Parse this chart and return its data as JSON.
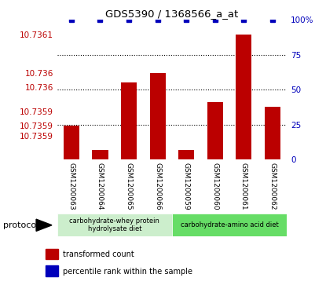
{
  "title": "GDS5390 / 1368566_a_at",
  "samples": [
    "GSM1200063",
    "GSM1200064",
    "GSM1200065",
    "GSM1200066",
    "GSM1200059",
    "GSM1200060",
    "GSM1200061",
    "GSM1200062"
  ],
  "transformed_counts": [
    10.73592,
    10.73587,
    10.73601,
    10.73603,
    10.73587,
    10.73597,
    10.73611,
    10.73596
  ],
  "percentile_ranks": [
    100,
    100,
    100,
    100,
    100,
    100,
    100,
    100
  ],
  "ylim_left": [
    10.73585,
    10.73614
  ],
  "ylim_right": [
    0,
    100
  ],
  "left_tick_vals": [
    10.7359,
    10.73592,
    10.73595,
    10.736,
    10.73603,
    10.73611
  ],
  "left_tick_labels": [
    "10.7359",
    "10.7359",
    "10.7359",
    "10.736",
    "10.736",
    "10.7361"
  ],
  "right_tick_vals": [
    0,
    25,
    50,
    75,
    100
  ],
  "right_tick_labels": [
    "0",
    "25",
    "50",
    "75",
    "100%"
  ],
  "bar_color": "#bb0000",
  "dot_color": "#0000bb",
  "group1_label": "carbohydrate-whey protein\nhydrolysate diet",
  "group2_label": "carbohydrate-amino acid diet",
  "group1_color": "#cceecc",
  "group2_color": "#66dd66",
  "protocol_label": "protocol",
  "legend1_label": "transformed count",
  "legend2_label": "percentile rank within the sample",
  "background_color": "#ffffff",
  "xticklabel_bg": "#cccccc",
  "plot_bg": "#ffffff"
}
